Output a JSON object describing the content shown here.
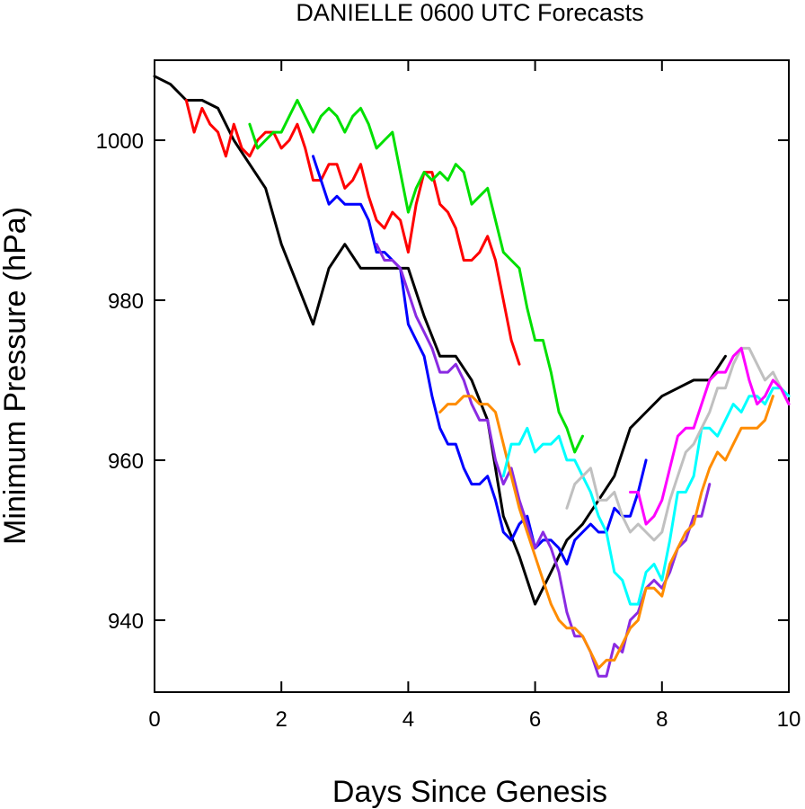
{
  "chart_data": {
    "type": "line",
    "title": "DANIELLE 0600 UTC Forecasts",
    "xlabel": "Days Since Genesis",
    "ylabel": "Minimum Pressure (hPa)",
    "xlim": [
      0,
      10
    ],
    "ylim": [
      931,
      1010
    ],
    "xticks": [
      0,
      2,
      4,
      6,
      8,
      10
    ],
    "yticks": [
      940,
      960,
      980,
      1000
    ],
    "grid": false,
    "series": [
      {
        "color": "#000000",
        "x": [
          0,
          0.25,
          0.5,
          0.75,
          1,
          1.25,
          1.5,
          1.75,
          2,
          2.25,
          2.5,
          2.75,
          3,
          3.25,
          3.5,
          3.75,
          4,
          4.25,
          4.5,
          4.75,
          5,
          5.25,
          5.5,
          5.75,
          6,
          6.25,
          6.5,
          6.75,
          7,
          7.25,
          7.5,
          7.75,
          8,
          8.25,
          8.5,
          8.75,
          9
        ],
        "y": [
          1008,
          1007,
          1005,
          1005,
          1004,
          1000,
          997,
          994,
          987,
          982,
          977,
          984,
          987,
          984,
          984,
          984,
          984,
          978,
          973,
          973,
          970,
          965,
          953,
          948,
          942,
          946,
          950,
          952,
          955,
          958,
          964,
          966,
          968,
          969,
          970,
          970,
          973
        ]
      },
      {
        "color": "#ff0000",
        "x": [
          0.5,
          0.625,
          0.75,
          0.875,
          1,
          1.125,
          1.25,
          1.375,
          1.5,
          1.625,
          1.75,
          1.875,
          2,
          2.125,
          2.25,
          2.375,
          2.5,
          2.625,
          2.75,
          2.875,
          3,
          3.125,
          3.25,
          3.375,
          3.5,
          3.625,
          3.75,
          3.875,
          4,
          4.125,
          4.25,
          4.375,
          4.5,
          4.625,
          4.75,
          4.875,
          5,
          5.125,
          5.25,
          5.375,
          5.5,
          5.625,
          5.75
        ],
        "y": [
          1005,
          1001,
          1004,
          1002,
          1001,
          998,
          1002,
          999,
          998,
          1000,
          1001,
          1001,
          999,
          1000,
          1002,
          999,
          995,
          995,
          997,
          997,
          994,
          995,
          997,
          993,
          990,
          989,
          991,
          990,
          986,
          992,
          996,
          996,
          992,
          991,
          989,
          985,
          985,
          986,
          988,
          985,
          980,
          975,
          972
        ]
      },
      {
        "color": "#00e000",
        "x": [
          1.5,
          1.625,
          1.75,
          1.875,
          2,
          2.125,
          2.25,
          2.375,
          2.5,
          2.625,
          2.75,
          2.875,
          3,
          3.125,
          3.25,
          3.375,
          3.5,
          3.625,
          3.75,
          3.875,
          4,
          4.125,
          4.25,
          4.375,
          4.5,
          4.625,
          4.75,
          4.875,
          5,
          5.125,
          5.25,
          5.375,
          5.5,
          5.625,
          5.75,
          5.875,
          6,
          6.125,
          6.25,
          6.375,
          6.5,
          6.625,
          6.75
        ],
        "y": [
          1002,
          999,
          1000,
          1001,
          1001,
          1003,
          1005,
          1003,
          1001,
          1003,
          1004,
          1003,
          1001,
          1003,
          1004,
          1002,
          999,
          1000,
          1001,
          996,
          991,
          994,
          996,
          995,
          996,
          995,
          997,
          996,
          992,
          993,
          994,
          990,
          986,
          985,
          984,
          979,
          975,
          975,
          971,
          966,
          964,
          961,
          963
        ]
      },
      {
        "color": "#0000ff",
        "x": [
          2.5,
          2.625,
          2.75,
          2.875,
          3,
          3.125,
          3.25,
          3.375,
          3.5,
          3.625,
          3.75,
          3.875,
          4,
          4.125,
          4.25,
          4.375,
          4.5,
          4.625,
          4.75,
          4.875,
          5,
          5.125,
          5.25,
          5.375,
          5.5,
          5.625,
          5.75,
          5.875,
          6,
          6.125,
          6.25,
          6.375,
          6.5,
          6.625,
          6.75,
          6.875,
          7,
          7.125,
          7.25,
          7.375,
          7.5,
          7.625,
          7.75
        ],
        "y": [
          998,
          995,
          992,
          993,
          992,
          992,
          992,
          990,
          986,
          986,
          985,
          984,
          977,
          975,
          973,
          968,
          964,
          962,
          962,
          959,
          957,
          957,
          958,
          955,
          951,
          950,
          952,
          953,
          949,
          950,
          950,
          949,
          947,
          950,
          951,
          952,
          951,
          951,
          954,
          953,
          953,
          956,
          960
        ]
      },
      {
        "color": "#8a2be2",
        "x": [
          3.5,
          3.625,
          3.75,
          3.875,
          4,
          4.125,
          4.25,
          4.375,
          4.5,
          4.625,
          4.75,
          4.875,
          5,
          5.125,
          5.25,
          5.375,
          5.5,
          5.625,
          5.75,
          5.875,
          6,
          6.125,
          6.25,
          6.375,
          6.5,
          6.625,
          6.75,
          6.875,
          7,
          7.125,
          7.25,
          7.375,
          7.5,
          7.625,
          7.75,
          7.875,
          8,
          8.125,
          8.25,
          8.375,
          8.5,
          8.625,
          8.75
        ],
        "y": [
          987,
          985,
          985,
          984,
          981,
          978,
          976,
          974,
          971,
          971,
          972,
          970,
          967,
          965,
          965,
          960,
          957,
          959,
          955,
          952,
          949,
          951,
          949,
          946,
          941,
          938,
          938,
          936,
          933,
          933,
          937,
          936,
          940,
          941,
          944,
          945,
          944,
          946,
          949,
          950,
          953,
          953,
          957
        ]
      },
      {
        "color": "#ff8c00",
        "x": [
          4.5,
          4.625,
          4.75,
          4.875,
          5,
          5.125,
          5.25,
          5.375,
          5.5,
          5.625,
          5.75,
          5.875,
          6,
          6.125,
          6.25,
          6.375,
          6.5,
          6.625,
          6.75,
          6.875,
          7,
          7.125,
          7.25,
          7.375,
          7.5,
          7.625,
          7.75,
          7.875,
          8,
          8.125,
          8.25,
          8.375,
          8.5,
          8.625,
          8.75,
          8.875,
          9,
          9.125,
          9.25,
          9.375,
          9.5,
          9.625,
          9.75
        ],
        "y": [
          966,
          967,
          967,
          968,
          968,
          967,
          967,
          966,
          962,
          958,
          954,
          951,
          948,
          945,
          942,
          940,
          939,
          939,
          938,
          936,
          934,
          935,
          935,
          937,
          939,
          940,
          944,
          944,
          943,
          947,
          949,
          951,
          952,
          956,
          959,
          961,
          960,
          962,
          964,
          964,
          964,
          965,
          968
        ]
      },
      {
        "color": "#00ffff",
        "x": [
          5.5,
          5.625,
          5.75,
          5.875,
          6,
          6.125,
          6.25,
          6.375,
          6.5,
          6.625,
          6.75,
          6.875,
          7,
          7.125,
          7.25,
          7.375,
          7.5,
          7.625,
          7.75,
          7.875,
          8,
          8.125,
          8.25,
          8.375,
          8.5,
          8.625,
          8.75,
          8.875,
          9,
          9.125,
          9.25,
          9.375,
          9.5,
          9.625,
          9.75,
          9.875,
          10
        ],
        "y": [
          958,
          962,
          962,
          964,
          961,
          962,
          962,
          963,
          960,
          960,
          958,
          956,
          953,
          951,
          946,
          945,
          942,
          942,
          946,
          947,
          945,
          950,
          956,
          956,
          958,
          964,
          964,
          963,
          965,
          967,
          966,
          968,
          968,
          967,
          969,
          969,
          968
        ]
      },
      {
        "color": "#c0c0c0",
        "x": [
          6.5,
          6.625,
          6.75,
          6.875,
          7,
          7.125,
          7.25,
          7.375,
          7.5,
          7.625,
          7.75,
          7.875,
          8,
          8.125,
          8.25,
          8.375,
          8.5,
          8.625,
          8.75,
          8.875,
          9,
          9.125,
          9.25,
          9.375,
          9.5,
          9.625,
          9.75,
          9.875,
          10
        ],
        "y": [
          954,
          957,
          958,
          959,
          955,
          955,
          956,
          953,
          951,
          952,
          951,
          950,
          951,
          955,
          958,
          961,
          962,
          964,
          966,
          969,
          969,
          972,
          974,
          974,
          972,
          970,
          971,
          969,
          967
        ]
      },
      {
        "color": "#ff00ff",
        "x": [
          7.5,
          7.625,
          7.75,
          7.875,
          8,
          8.125,
          8.25,
          8.375,
          8.5,
          8.625,
          8.75,
          8.875,
          9,
          9.125,
          9.25,
          9.375,
          9.5,
          9.625,
          9.75,
          9.875,
          10
        ],
        "y": [
          956,
          956,
          952,
          953,
          955,
          959,
          963,
          964,
          964,
          967,
          970,
          971,
          971,
          973,
          974,
          970,
          967,
          968,
          970,
          969,
          967
        ]
      }
    ]
  }
}
